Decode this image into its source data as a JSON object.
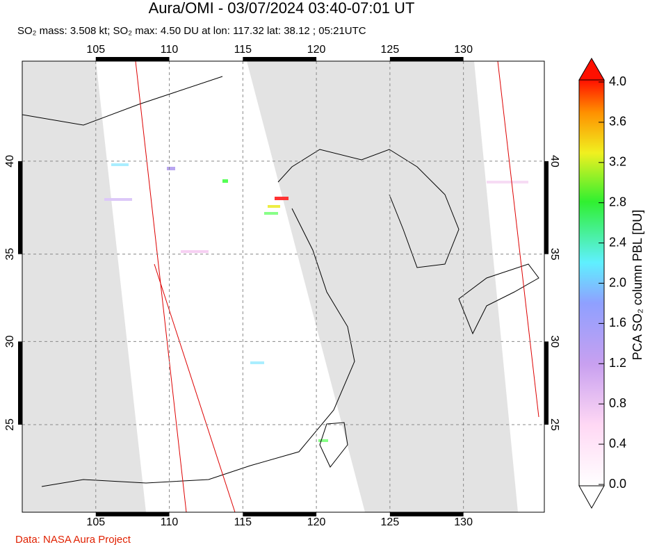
{
  "chart_data": {
    "type": "map",
    "title": "Aura/OMI - 03/07/2024 03:40-07:01 UT",
    "subtitle": "SO₂ mass: 3.508 kt; SO₂ max: 4.50 DU at lon: 117.32 lat: 38.12 ; 05:21UTC",
    "xlim": [
      100,
      135.5
    ],
    "ylim": [
      19.5,
      45
    ],
    "xticks": [
      105,
      110,
      115,
      120,
      125,
      130
    ],
    "yticks": [
      25,
      30,
      35,
      40
    ],
    "grid": true,
    "colorbar": {
      "label": "PCA SO₂ column PBL [DU]",
      "lim": [
        0,
        4
      ],
      "ticks": [
        {
          "value": 0,
          "label": "0.0"
        },
        0.4,
        0.8,
        1.2,
        1.6,
        {
          "value": 2,
          "label": "2.0"
        },
        2.4,
        2.8,
        3.2,
        3.6,
        {
          "value": 4,
          "label": "4.0"
        }
      ]
    },
    "credit": "Data: NASA Aura Project"
  }
}
